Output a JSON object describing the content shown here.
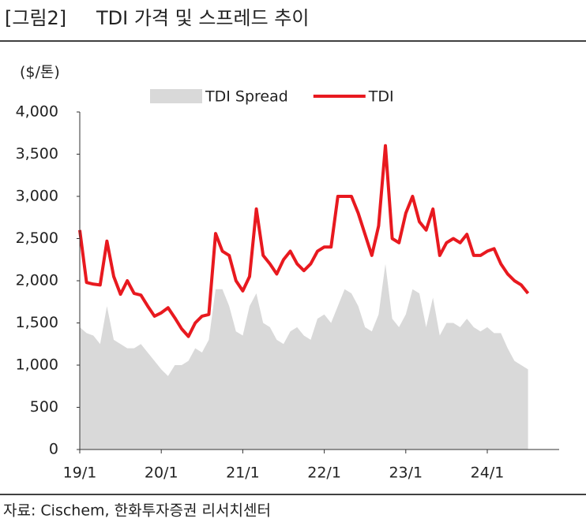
{
  "chart_data": {
    "type": "line_area",
    "title_prefix": "[그림2]",
    "title": "TDI 가격 및 스프레드 추이",
    "unit": "($/톤)",
    "source": "자료: Cischem, 한화투자증권 리서치센터",
    "categories": [
      "19/1",
      null,
      null,
      null,
      null,
      null,
      null,
      null,
      null,
      null,
      null,
      null,
      "20/1",
      null,
      null,
      null,
      null,
      null,
      null,
      null,
      null,
      null,
      null,
      null,
      "21/1",
      null,
      null,
      null,
      null,
      null,
      null,
      null,
      null,
      null,
      null,
      null,
      "22/1",
      null,
      null,
      null,
      null,
      null,
      null,
      null,
      null,
      null,
      null,
      null,
      "23/1",
      null,
      null,
      null,
      null,
      null,
      null,
      null,
      null,
      null,
      null,
      null,
      "24/1",
      null,
      null,
      null,
      null,
      null,
      null
    ],
    "series": [
      {
        "name": "TDI Spread",
        "color": "#d9d9d9",
        "kind": "area",
        "values": [
          1450,
          1380,
          1350,
          1250,
          1700,
          1300,
          1250,
          1200,
          1200,
          1250,
          1150,
          1050,
          950,
          870,
          1000,
          1000,
          1050,
          1200,
          1150,
          1300,
          1900,
          1900,
          1700,
          1400,
          1350,
          1700,
          1850,
          1500,
          1450,
          1300,
          1250,
          1400,
          1450,
          1350,
          1300,
          1550,
          1600,
          1500,
          1700,
          1900,
          1850,
          1700,
          1450,
          1400,
          1600,
          2200,
          1550,
          1450,
          1600,
          1900,
          1850,
          1450,
          1800,
          1350,
          1500,
          1500,
          1450,
          1550,
          1450,
          1400,
          1450,
          1380,
          1380,
          1200,
          1050,
          1000,
          950
        ]
      },
      {
        "name": "TDI",
        "color": "#e8191f",
        "kind": "line",
        "values": [
          2600,
          1980,
          1960,
          1950,
          2470,
          2050,
          1840,
          2000,
          1850,
          1830,
          1700,
          1580,
          1620,
          1680,
          1560,
          1430,
          1340,
          1500,
          1580,
          1600,
          2560,
          2350,
          2300,
          2000,
          1880,
          2050,
          2850,
          2300,
          2200,
          2080,
          2250,
          2350,
          2200,
          2120,
          2200,
          2350,
          2400,
          2400,
          3000,
          3000,
          3000,
          2800,
          2550,
          2300,
          2650,
          3600,
          2500,
          2450,
          2800,
          3000,
          2700,
          2600,
          2850,
          2300,
          2450,
          2500,
          2450,
          2550,
          2300,
          2300,
          2350,
          2380,
          2200,
          2080,
          2000,
          1950,
          1850
        ]
      }
    ],
    "ylim": [
      0,
      4000
    ],
    "yticks": [
      0,
      500,
      {
        "value": 1000,
        "label": "1,000"
      },
      {
        "value": 1500,
        "label": "1,500"
      },
      {
        "value": 2000,
        "label": "2,000"
      },
      {
        "value": 2500,
        "label": "2,500"
      },
      {
        "value": 3000,
        "label": "3,000"
      },
      {
        "value": 3500,
        "label": "3,500"
      },
      {
        "value": 4000,
        "label": "4,000"
      }
    ]
  }
}
